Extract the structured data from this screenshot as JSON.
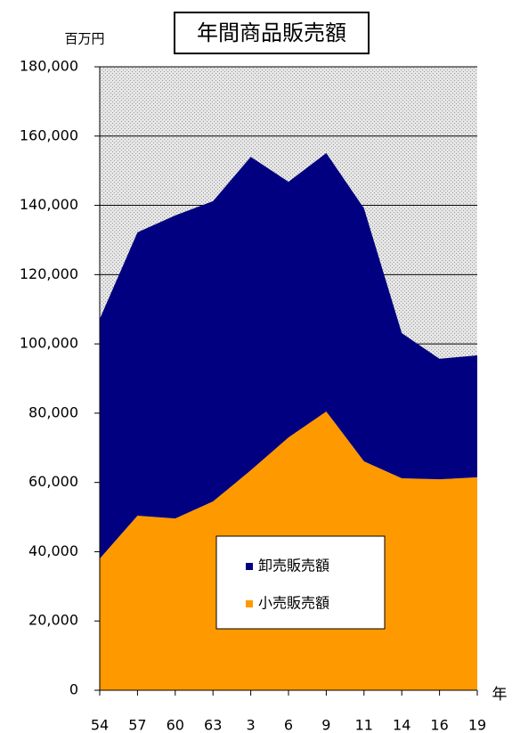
{
  "chart_data": {
    "type": "stacked_area",
    "title": "年間商品販売額",
    "y_label": "百万円",
    "x_label": "年",
    "categories": [
      "54",
      "57",
      "60",
      "63",
      "3",
      "6",
      "9",
      "11",
      "14",
      "16",
      "19"
    ],
    "series": [
      {
        "name": "小売販売額",
        "color": "#ff9900",
        "values": [
          38000,
          50400,
          49600,
          54500,
          63500,
          73000,
          80500,
          66100,
          61200,
          60900,
          61500
        ]
      },
      {
        "name": "卸売販売額",
        "color": "#000080",
        "values": [
          69200,
          81800,
          87500,
          86700,
          90500,
          73800,
          74600,
          73000,
          41900,
          34800,
          35200
        ]
      }
    ],
    "ylim": [
      0,
      180000
    ],
    "yticks": [
      0,
      {
        "value": 20000,
        "label": "20,000"
      },
      {
        "value": 40000,
        "label": "40,000"
      },
      {
        "value": 60000,
        "label": "60,000"
      },
      {
        "value": 80000,
        "label": "80,000"
      },
      {
        "value": 100000,
        "label": "100,000"
      },
      {
        "value": 120000,
        "label": "120,000"
      },
      {
        "value": 140000,
        "label": "140,000"
      },
      {
        "value": 160000,
        "label": "160,000"
      },
      {
        "value": 180000,
        "label": "180,000"
      }
    ],
    "grid": true
  }
}
